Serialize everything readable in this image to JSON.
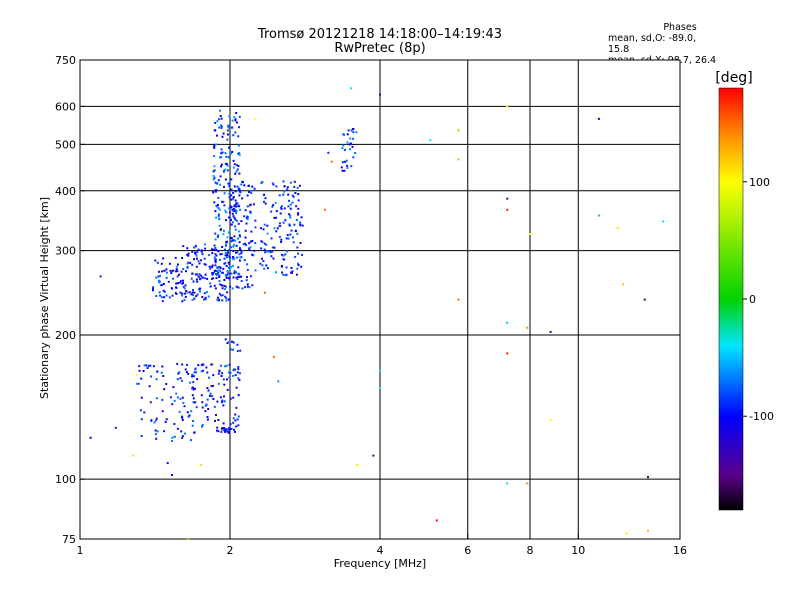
{
  "header": {
    "title": "Tromsø 20121218 14:18:00–14:19:43",
    "subtitle": "RwPretec (8p)"
  },
  "phases": {
    "heading": "Phases",
    "line_o": "mean, sd,O: -89.0, 15.8",
    "line_x": "mean, sd,X:  98.7, 26.4"
  },
  "colorbar": {
    "unit": "[deg]",
    "ticks": [
      "100",
      "0",
      "-100"
    ],
    "tick_values": [
      100,
      0,
      -100
    ],
    "range": [
      -180,
      180
    ]
  },
  "colors": {
    "background": "#ffffff",
    "grid": "#000000"
  },
  "chart_data": {
    "type": "scatter",
    "xlabel": "Frequency [MHz]",
    "ylabel": "Stationary phase Virtual Height [km]",
    "xscale": "log",
    "yscale": "log",
    "xlim": [
      1,
      16
    ],
    "ylim": [
      75,
      750
    ],
    "xticks": [
      "1",
      "2",
      "4",
      "6",
      "8",
      "10",
      "16"
    ],
    "xtick_values": [
      1,
      2,
      4,
      6,
      8,
      10,
      16
    ],
    "yticks": [
      "75",
      "100",
      "200",
      "300",
      "400",
      "500",
      "600",
      "750"
    ],
    "ytick_values": [
      75,
      100,
      200,
      300,
      400,
      500,
      600,
      750
    ],
    "grid": true,
    "series": [
      {
        "clusters": [
          {
            "x_range": [
              1.4,
              1.6
            ],
            "y_range": [
              235,
              290
            ],
            "phase_mean": -95,
            "count": 60
          },
          {
            "x_range": [
              1.6,
              2.0
            ],
            "y_range": [
              235,
              310
            ],
            "phase_mean": -95,
            "count": 180
          },
          {
            "x_range": [
              1.85,
              2.1
            ],
            "y_range": [
              260,
              590
            ],
            "phase_mean": -85,
            "count": 200
          },
          {
            "x_range": [
              2.0,
              2.25
            ],
            "y_range": [
              250,
              420
            ],
            "phase_mean": -90,
            "count": 120
          },
          {
            "x_range": [
              2.3,
              2.8
            ],
            "y_range": [
              265,
              420
            ],
            "phase_mean": -90,
            "count": 140
          },
          {
            "x_range": [
              3.35,
              3.6
            ],
            "y_range": [
              440,
              540
            ],
            "phase_mean": -90,
            "count": 30
          },
          {
            "x_range": [
              1.3,
              1.7
            ],
            "y_range": [
              120,
              175
            ],
            "phase_mean": -95,
            "count": 90
          },
          {
            "x_range": [
              1.65,
              2.1
            ],
            "y_range": [
              125,
              175
            ],
            "phase_mean": -95,
            "count": 110
          },
          {
            "x_range": [
              1.88,
              2.05
            ],
            "y_range": [
              125,
              128
            ],
            "phase_mean": -95,
            "count": 20
          },
          {
            "x_range": [
              1.95,
              2.12
            ],
            "y_range": [
              185,
              200
            ],
            "phase_mean": -95,
            "count": 10
          }
        ],
        "points": [
          {
            "x": 1.05,
            "y": 122,
            "phase": -100
          },
          {
            "x": 1.18,
            "y": 128,
            "phase": -95
          },
          {
            "x": 1.1,
            "y": 265,
            "phase": -90
          },
          {
            "x": 1.28,
            "y": 112,
            "phase": 110
          },
          {
            "x": 1.3,
            "y": 165,
            "phase": 100
          },
          {
            "x": 1.5,
            "y": 108,
            "phase": -100
          },
          {
            "x": 1.53,
            "y": 102,
            "phase": -100
          },
          {
            "x": 1.65,
            "y": 75,
            "phase": 60
          },
          {
            "x": 1.75,
            "y": 107,
            "phase": 110
          },
          {
            "x": 2.25,
            "y": 565,
            "phase": 100
          },
          {
            "x": 2.35,
            "y": 245,
            "phase": 150
          },
          {
            "x": 2.45,
            "y": 180,
            "phase": 150
          },
          {
            "x": 2.5,
            "y": 160,
            "phase": -60
          },
          {
            "x": 3.15,
            "y": 480,
            "phase": -90
          },
          {
            "x": 3.2,
            "y": 460,
            "phase": 150
          },
          {
            "x": 3.1,
            "y": 365,
            "phase": 150
          },
          {
            "x": 3.5,
            "y": 655,
            "phase": -40
          },
          {
            "x": 3.6,
            "y": 107,
            "phase": 110
          },
          {
            "x": 3.88,
            "y": 112,
            "phase": -130
          },
          {
            "x": 4.0,
            "y": 635,
            "phase": -150
          },
          {
            "x": 4.0,
            "y": 168,
            "phase": -40
          },
          {
            "x": 4.0,
            "y": 155,
            "phase": -40
          },
          {
            "x": 5.05,
            "y": 510,
            "phase": -40
          },
          {
            "x": 5.2,
            "y": 82,
            "phase": 180
          },
          {
            "x": 5.75,
            "y": 535,
            "phase": 50
          },
          {
            "x": 5.75,
            "y": 465,
            "phase": 60
          },
          {
            "x": 5.75,
            "y": 237,
            "phase": 150
          },
          {
            "x": 7.2,
            "y": 600,
            "phase": 100
          },
          {
            "x": 7.2,
            "y": 385,
            "phase": -150
          },
          {
            "x": 7.2,
            "y": 365,
            "phase": 170
          },
          {
            "x": 7.2,
            "y": 212,
            "phase": -50
          },
          {
            "x": 7.2,
            "y": 183,
            "phase": 170
          },
          {
            "x": 7.2,
            "y": 98,
            "phase": -30
          },
          {
            "x": 7.9,
            "y": 207,
            "phase": 140
          },
          {
            "x": 8.0,
            "y": 325,
            "phase": 100
          },
          {
            "x": 7.9,
            "y": 98,
            "phase": 140
          },
          {
            "x": 8.8,
            "y": 203,
            "phase": -120
          },
          {
            "x": 8.8,
            "y": 133,
            "phase": 100
          },
          {
            "x": 11.0,
            "y": 565,
            "phase": -110
          },
          {
            "x": 11.0,
            "y": 355,
            "phase": -10
          },
          {
            "x": 12.0,
            "y": 335,
            "phase": 110
          },
          {
            "x": 12.3,
            "y": 255,
            "phase": 120
          },
          {
            "x": 12.5,
            "y": 77,
            "phase": 110
          },
          {
            "x": 13.6,
            "y": 237,
            "phase": -140
          },
          {
            "x": 13.8,
            "y": 101,
            "phase": -160
          },
          {
            "x": 13.8,
            "y": 78,
            "phase": 120
          },
          {
            "x": 14.8,
            "y": 345,
            "phase": -40
          }
        ]
      }
    ]
  }
}
